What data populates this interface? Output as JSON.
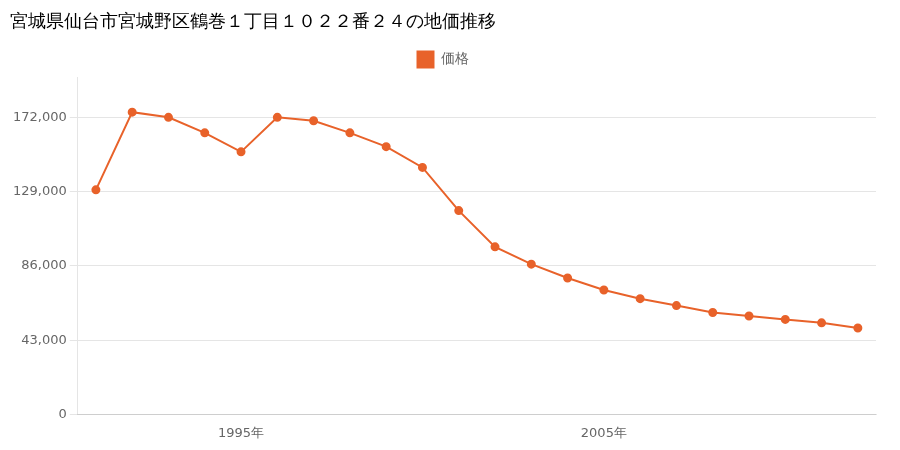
{
  "chart_data": {
    "type": "line",
    "title": "宮城県仙台市宮城野区鶴巻１丁目１０２２番２４の地価推移",
    "x": [
      1991,
      1992,
      1993,
      1994,
      1995,
      1996,
      1997,
      1998,
      1999,
      2000,
      2001,
      2002,
      2003,
      2004,
      2005,
      2006,
      2007,
      2008,
      2009,
      2010,
      2011,
      2012
    ],
    "series": [
      {
        "name": "価格",
        "color": "#e8622a",
        "marker": "circle",
        "line_style": "solid",
        "values": [
          130000,
          175000,
          172000,
          163000,
          152000,
          172000,
          170000,
          163000,
          155000,
          143000,
          118000,
          97000,
          87000,
          79000,
          72000,
          67000,
          63000,
          59000,
          57000,
          55000,
          53000,
          50000
        ]
      }
    ],
    "xlim": [
      1990.5,
      2012.5
    ],
    "xticks": [
      {
        "value": 1995,
        "label": "1995年"
      },
      {
        "value": 2005,
        "label": "2005年"
      }
    ],
    "ylim": [
      0,
      195000
    ],
    "yticks": [
      0,
      {
        "value": 43000,
        "label": "43,000"
      },
      {
        "value": 86000,
        "label": "86,000"
      },
      {
        "value": 129000,
        "label": "129,000"
      },
      {
        "value": 172000,
        "label": "172,000"
      }
    ],
    "grid": "y",
    "legend": "top"
  }
}
